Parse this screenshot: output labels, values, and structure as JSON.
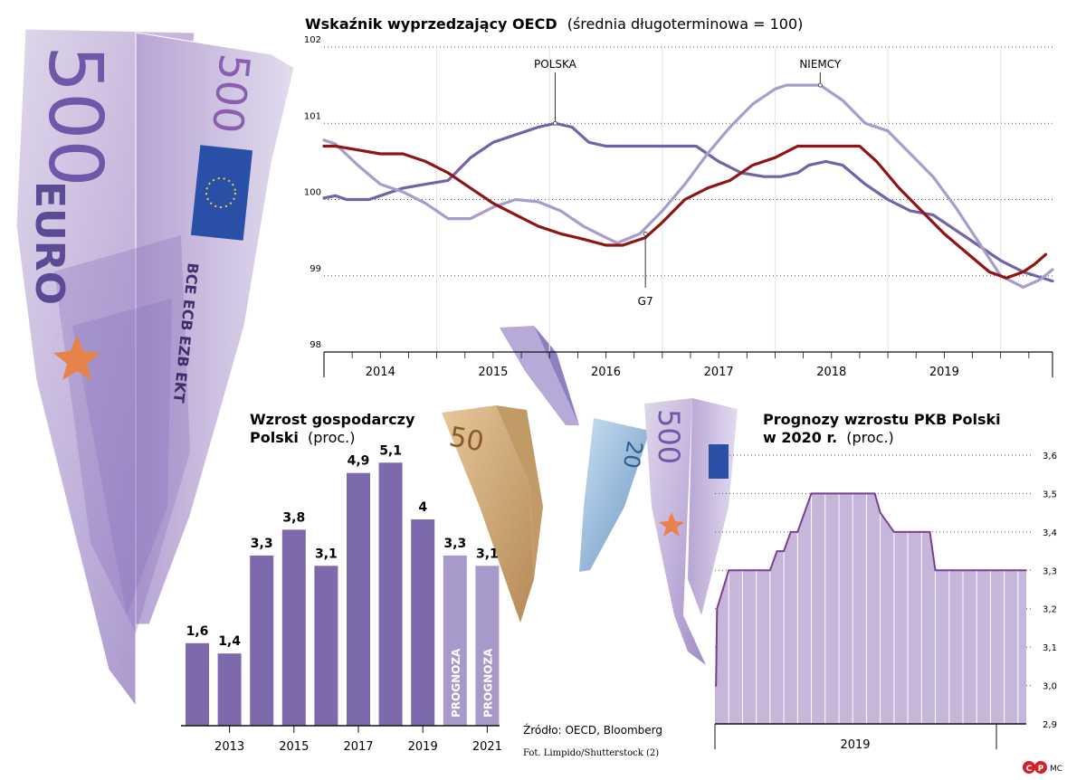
{
  "colors": {
    "polska": "#7262a8",
    "niemcy": "#a89ccc",
    "g7": "#8f1414",
    "bar": "#7e69ad",
    "bar_forecast": "#a79acb",
    "area_fill": "#c6b6da",
    "area_line": "#7a3f93",
    "grid": "#555555",
    "logo_red": "#d2232a"
  },
  "decor": {
    "banknote_500_text": "500",
    "banknote_euro_text": "EURO",
    "banknote_issuer": "BCE ECB EZB EKT",
    "small_banknote_50": "50",
    "small_banknote_20": "20"
  },
  "chart_data": [
    {
      "type": "line",
      "title": "Wskaźnik wyprzedzający OECD",
      "subtitle": "(średnia długoterminowa = 100)",
      "ylim": [
        98,
        102
      ],
      "yticks": [
        "98",
        "99",
        "100",
        "101",
        "102"
      ],
      "x_range": [
        2013.5,
        2019.96
      ],
      "period_labels": [
        "2014",
        "2015",
        "2016",
        "2017",
        "2018",
        "2019"
      ],
      "grid": "horizontal dotted, vertical white year separators",
      "annotations": [
        {
          "text": "POLSKA",
          "series": "POLSKA",
          "x": 2015.55,
          "y": 101.0
        },
        {
          "text": "NIEMCY",
          "series": "NIEMCY",
          "x": 2017.9,
          "y": 101.5
        },
        {
          "text": "G7",
          "series": "G7",
          "x": 2016.35,
          "y": 99.55
        }
      ],
      "series": [
        {
          "name": "POLSKA",
          "color_key": "polska",
          "points": [
            [
              2013.5,
              100.02
            ],
            [
              2013.6,
              100.05
            ],
            [
              2013.7,
              100.0
            ],
            [
              2013.9,
              100.0
            ],
            [
              2014.0,
              100.05
            ],
            [
              2014.2,
              100.15
            ],
            [
              2014.4,
              100.2
            ],
            [
              2014.6,
              100.25
            ],
            [
              2014.8,
              100.55
            ],
            [
              2015.0,
              100.75
            ],
            [
              2015.2,
              100.85
            ],
            [
              2015.4,
              100.95
            ],
            [
              2015.55,
              101.0
            ],
            [
              2015.7,
              100.95
            ],
            [
              2015.85,
              100.75
            ],
            [
              2016.0,
              100.7
            ],
            [
              2016.2,
              100.7
            ],
            [
              2016.4,
              100.7
            ],
            [
              2016.6,
              100.7
            ],
            [
              2016.8,
              100.7
            ],
            [
              2017.0,
              100.5
            ],
            [
              2017.2,
              100.35
            ],
            [
              2017.4,
              100.3
            ],
            [
              2017.55,
              100.3
            ],
            [
              2017.7,
              100.35
            ],
            [
              2017.8,
              100.45
            ],
            [
              2017.95,
              100.5
            ],
            [
              2018.1,
              100.45
            ],
            [
              2018.3,
              100.2
            ],
            [
              2018.5,
              100.0
            ],
            [
              2018.7,
              99.85
            ],
            [
              2018.9,
              99.8
            ],
            [
              2019.1,
              99.6
            ],
            [
              2019.3,
              99.4
            ],
            [
              2019.5,
              99.2
            ],
            [
              2019.7,
              99.05
            ],
            [
              2019.96,
              98.93
            ]
          ]
        },
        {
          "name": "NIEMCY",
          "color_key": "niemcy",
          "points": [
            [
              2013.5,
              100.78
            ],
            [
              2013.6,
              100.73
            ],
            [
              2013.8,
              100.45
            ],
            [
              2014.0,
              100.2
            ],
            [
              2014.2,
              100.1
            ],
            [
              2014.4,
              99.95
            ],
            [
              2014.6,
              99.75
            ],
            [
              2014.8,
              99.75
            ],
            [
              2015.0,
              99.9
            ],
            [
              2015.2,
              100.0
            ],
            [
              2015.4,
              99.97
            ],
            [
              2015.6,
              99.85
            ],
            [
              2015.8,
              99.65
            ],
            [
              2016.0,
              99.5
            ],
            [
              2016.1,
              99.43
            ],
            [
              2016.3,
              99.55
            ],
            [
              2016.5,
              99.85
            ],
            [
              2016.7,
              100.2
            ],
            [
              2016.9,
              100.6
            ],
            [
              2017.1,
              100.95
            ],
            [
              2017.3,
              101.25
            ],
            [
              2017.5,
              101.45
            ],
            [
              2017.6,
              101.5
            ],
            [
              2017.9,
              101.5
            ],
            [
              2018.1,
              101.3
            ],
            [
              2018.3,
              101.0
            ],
            [
              2018.5,
              100.9
            ],
            [
              2018.7,
              100.6
            ],
            [
              2018.9,
              100.3
            ],
            [
              2019.1,
              99.9
            ],
            [
              2019.3,
              99.45
            ],
            [
              2019.5,
              99.0
            ],
            [
              2019.7,
              98.85
            ],
            [
              2019.85,
              98.95
            ],
            [
              2019.96,
              99.08
            ]
          ]
        },
        {
          "name": "G7",
          "color_key": "g7",
          "points": [
            [
              2013.5,
              100.7
            ],
            [
              2013.6,
              100.7
            ],
            [
              2013.8,
              100.65
            ],
            [
              2014.0,
              100.6
            ],
            [
              2014.2,
              100.6
            ],
            [
              2014.4,
              100.5
            ],
            [
              2014.6,
              100.35
            ],
            [
              2014.8,
              100.15
            ],
            [
              2015.0,
              99.95
            ],
            [
              2015.2,
              99.8
            ],
            [
              2015.4,
              99.65
            ],
            [
              2015.6,
              99.55
            ],
            [
              2015.8,
              99.48
            ],
            [
              2016.0,
              99.4
            ],
            [
              2016.15,
              99.4
            ],
            [
              2016.35,
              99.5
            ],
            [
              2016.5,
              99.7
            ],
            [
              2016.7,
              100.0
            ],
            [
              2016.9,
              100.15
            ],
            [
              2017.1,
              100.25
            ],
            [
              2017.3,
              100.45
            ],
            [
              2017.5,
              100.55
            ],
            [
              2017.7,
              100.7
            ],
            [
              2017.9,
              100.7
            ],
            [
              2018.1,
              100.7
            ],
            [
              2018.25,
              100.7
            ],
            [
              2018.4,
              100.5
            ],
            [
              2018.6,
              100.15
            ],
            [
              2018.8,
              99.85
            ],
            [
              2019.0,
              99.55
            ],
            [
              2019.2,
              99.3
            ],
            [
              2019.4,
              99.05
            ],
            [
              2019.55,
              98.97
            ],
            [
              2019.7,
              99.05
            ],
            [
              2019.8,
              99.15
            ],
            [
              2019.9,
              99.28
            ]
          ]
        }
      ]
    },
    {
      "type": "bar",
      "title_bold": "Wzrost gospodarczy Polski",
      "title_suffix": "(proc.)",
      "years": [
        "2012",
        "2013",
        "2014",
        "2015",
        "2016",
        "2017",
        "2018",
        "2019",
        "2020",
        "2021"
      ],
      "values": [
        1.6,
        1.4,
        3.3,
        3.8,
        3.1,
        4.9,
        5.1,
        4,
        3.3,
        3.1
      ],
      "value_labels": [
        "1,6",
        "1,4",
        "3,3",
        "3,8",
        "3,1",
        "4,9",
        "5,1",
        "4",
        "3,3",
        "3,1"
      ],
      "forecast": [
        false,
        false,
        false,
        false,
        false,
        false,
        false,
        false,
        true,
        true
      ],
      "forecast_label": "PROGNOZA",
      "x_tick_labels": [
        {
          "year": "2013",
          "label": "2013"
        },
        {
          "year": "2015",
          "label": "2015"
        },
        {
          "year": "2017",
          "label": "2017"
        },
        {
          "year": "2019",
          "label": "2019"
        },
        {
          "year": "2021",
          "label": "2021"
        }
      ]
    },
    {
      "type": "area",
      "title_line1": "Prognozy wzrostu PKB Polski",
      "title_line2_bold": "w 2020 r.",
      "title_suffix": "(proc.)",
      "ylim": [
        2.9,
        3.6
      ],
      "yticks": [
        "2,9",
        "3,0",
        "3,1",
        "3,2",
        "3,3",
        "3,4",
        "3,5",
        "3,6"
      ],
      "xlabel": "2019",
      "x": [
        0,
        0.08,
        0.15,
        1.0,
        2.0,
        3.0,
        3.5,
        4.0,
        4.5,
        5.0,
        5.5,
        6.0,
        7.0,
        8.0,
        9.0,
        10.0,
        10.5,
        11.0,
        11.6,
        12.0,
        13.0,
        14.0,
        15.0,
        15.6,
        16.0,
        17.0,
        18.0,
        19.0,
        20.0,
        21.0,
        22.0,
        22.6
      ],
      "values": [
        3.0,
        3.0,
        3.2,
        3.3,
        3.3,
        3.3,
        3.3,
        3.3,
        3.35,
        3.35,
        3.4,
        3.4,
        3.5,
        3.5,
        3.5,
        3.5,
        3.5,
        3.5,
        3.5,
        3.45,
        3.4,
        3.4,
        3.4,
        3.4,
        3.3,
        3.3,
        3.3,
        3.3,
        3.3,
        3.3,
        3.3,
        3.3
      ]
    }
  ],
  "footer": {
    "source": "Źródło: OECD, Bloomberg",
    "photo": "Fot. Limpido/Shutterstock (2)",
    "logo_text": "MC",
    "logo_c": "C",
    "logo_p": "P"
  }
}
